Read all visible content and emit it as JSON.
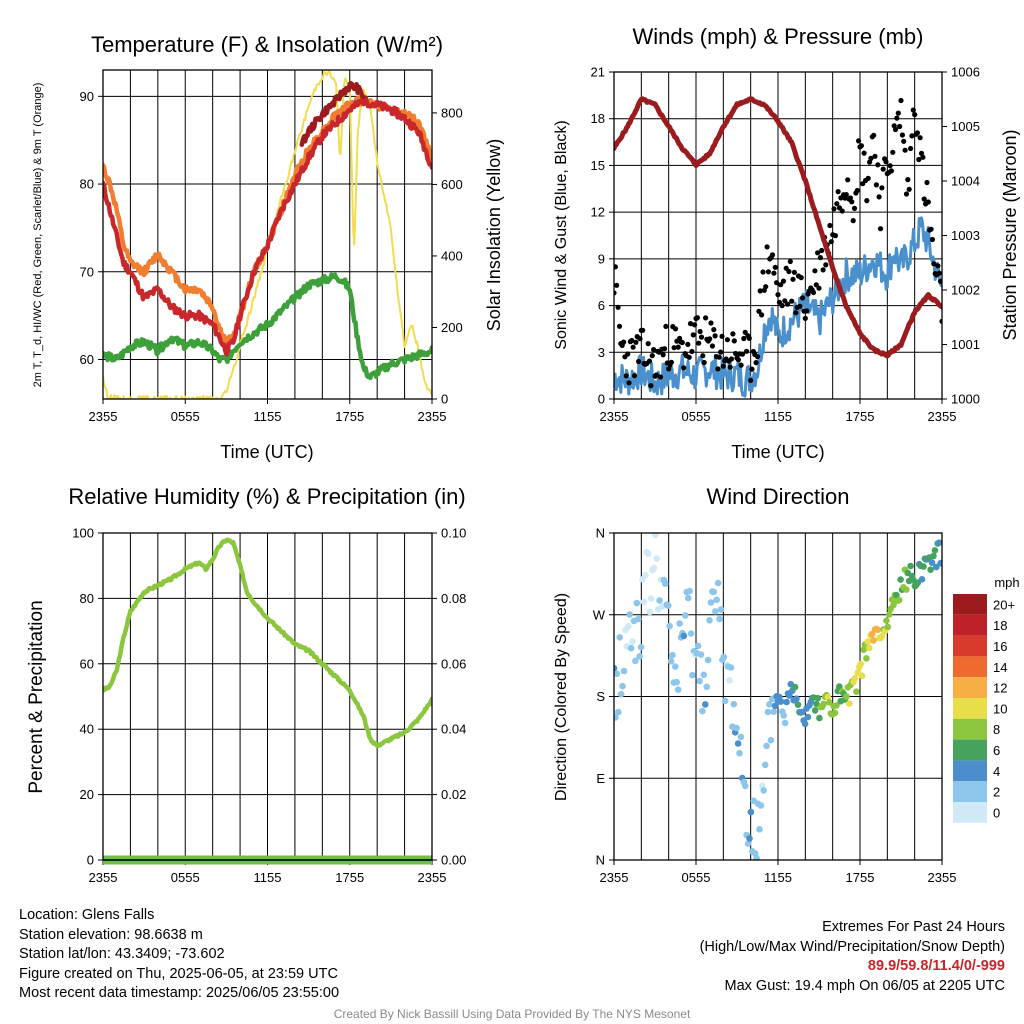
{
  "chart_data": [
    {
      "type": "line",
      "title": "Temperature (F) & Insolation (W/m²)",
      "xlabel": "Time (UTC)",
      "ylabel_left": "2m T, T_d, HI/WC (Red, Green, Scarlet/Blue) & 9m T (Orange)",
      "ylabel_right": "Solar Insolation (Yellow)",
      "x_ticks": [
        "2355",
        "0555",
        "1155",
        "1755",
        "2355"
      ],
      "x_range_hours": [
        0,
        24
      ],
      "ylim_left": [
        55.5,
        93
      ],
      "yticks_left": [
        60,
        70,
        80,
        90
      ],
      "ylim_right": [
        0,
        920
      ],
      "yticks_right": [
        0,
        200,
        400,
        600,
        800
      ],
      "series": [
        {
          "name": "2m T",
          "color": "#c8282b",
          "axis": "left",
          "x": [
            0,
            0.5,
            1,
            1.5,
            2,
            3,
            4,
            5,
            6,
            7,
            8,
            8.5,
            9,
            9.5,
            10,
            11,
            12,
            13,
            14,
            15,
            16,
            17,
            18,
            18.5,
            19,
            20,
            21,
            22,
            23,
            24
          ],
          "values": [
            80,
            77,
            74,
            71,
            70,
            67,
            68,
            66,
            65,
            65,
            64,
            62.5,
            61,
            62,
            65,
            70,
            73,
            77,
            80,
            83,
            85.5,
            87,
            88.5,
            89,
            89.5,
            89,
            88.5,
            87.5,
            86,
            82
          ]
        },
        {
          "name": "9m T",
          "color": "#f07d30",
          "axis": "left",
          "x": [
            0,
            0.5,
            1,
            1.5,
            2,
            3,
            4,
            5,
            6,
            7,
            8,
            8.5,
            9,
            9.5,
            10,
            11,
            12,
            13,
            14,
            15,
            16,
            17,
            18,
            18.5,
            19,
            20,
            21,
            22,
            23,
            24
          ],
          "values": [
            82,
            80,
            77,
            73,
            71,
            70,
            72,
            70,
            68,
            68,
            66,
            63.5,
            62,
            62.5,
            65,
            70,
            73,
            77,
            81,
            84,
            86,
            88,
            89,
            89.5,
            89.5,
            89,
            88.5,
            88,
            87,
            83
          ]
        },
        {
          "name": "HI/WC",
          "color": "#9b1b1f",
          "axis": "left",
          "x": [
            14.5,
            15,
            16,
            17,
            17.5,
            18,
            18.5,
            19
          ],
          "values": [
            84.5,
            86,
            88,
            89.5,
            90.5,
            91.2,
            91,
            90
          ]
        },
        {
          "name": "T_d",
          "color": "#3ea03a",
          "axis": "left",
          "x": [
            0,
            1,
            2,
            3,
            4,
            5,
            6,
            7,
            8,
            8.5,
            9,
            10,
            11,
            12,
            13,
            14,
            15,
            16,
            17,
            17.5,
            18,
            18.5,
            19,
            19.5,
            20,
            21,
            22,
            23,
            24
          ],
          "values": [
            60.5,
            60,
            61.5,
            62,
            61,
            62.5,
            61.5,
            62,
            61,
            60,
            60,
            62,
            63,
            64,
            65.5,
            67,
            68.5,
            69,
            69.5,
            69,
            68,
            63,
            59,
            58,
            58.5,
            59.5,
            60,
            60.5,
            61
          ]
        },
        {
          "name": "Solar Insolation",
          "color": "#f2dc50",
          "axis": "right",
          "x": [
            0,
            0.3,
            1,
            2,
            8.5,
            9,
            9.5,
            10,
            11,
            12,
            13,
            14,
            15,
            15.5,
            16,
            16.5,
            17,
            17.3,
            17.6,
            18,
            18.3,
            18.6,
            19,
            19.5,
            20,
            21,
            21.5,
            22,
            22.5,
            23,
            23.5,
            24
          ],
          "values": [
            60,
            10,
            0,
            0,
            0,
            20,
            80,
            150,
            280,
            420,
            560,
            690,
            820,
            870,
            905,
            915,
            880,
            660,
            890,
            880,
            400,
            760,
            860,
            820,
            660,
            480,
            300,
            150,
            210,
            140,
            40,
            20
          ]
        }
      ]
    },
    {
      "type": "scatter",
      "title": "Winds (mph) & Pressure (mb)",
      "xlabel": "Time (UTC)",
      "ylabel_left": "Sonic Wind & Gust (Blue, Black)",
      "ylabel_right": "Station Pressure (Maroon)",
      "x_ticks": [
        "2355",
        "0555",
        "1155",
        "1755",
        "2355"
      ],
      "x_range_hours": [
        0,
        24
      ],
      "ylim_left": [
        0,
        21
      ],
      "yticks_left": [
        0,
        3,
        6,
        9,
        12,
        15,
        18,
        21
      ],
      "ylim_right": [
        1000,
        1006
      ],
      "yticks_right": [
        1000,
        1001,
        1002,
        1003,
        1004,
        1005,
        1006
      ],
      "series": [
        {
          "name": "Sonic Wind",
          "color": "#4a90cc",
          "axis": "left",
          "x": [
            0,
            1,
            2,
            3,
            4,
            5,
            6,
            7,
            8,
            9,
            9.5,
            10,
            10.5,
            11,
            11.5,
            12,
            13,
            14,
            15,
            16,
            17,
            18,
            19,
            20,
            20.5,
            21,
            22,
            22.5,
            23,
            24
          ],
          "values": [
            1.5,
            1.2,
            1.8,
            1,
            1.5,
            1.8,
            1.5,
            2,
            1.5,
            1.6,
            1.2,
            1.4,
            2,
            4.5,
            5.5,
            4,
            5,
            6,
            5,
            6.5,
            8,
            8,
            9,
            8,
            9.5,
            8.5,
            10,
            11,
            10,
            7
          ]
        },
        {
          "name": "Gust",
          "color": "#000000",
          "axis": "left",
          "x": [
            0,
            0.5,
            1,
            2,
            3,
            4,
            5,
            6,
            7,
            8,
            9,
            10,
            10.5,
            11,
            11.5,
            12,
            12.5,
            13,
            14,
            15,
            16,
            16.5,
            17,
            17.5,
            18,
            18.5,
            19,
            19.5,
            20,
            20.5,
            21,
            21.5,
            22,
            22.5,
            23,
            23.5,
            24
          ],
          "values": [
            8,
            3.5,
            2.5,
            3,
            2,
            3.5,
            3,
            4,
            3.5,
            3,
            3,
            2.5,
            4,
            8,
            9.5,
            6.5,
            7,
            7.5,
            6,
            8.5,
            11,
            13,
            14.5,
            13,
            16,
            14,
            17,
            12.5,
            15,
            16.5,
            18.5,
            13,
            19.4,
            15,
            12,
            8,
            6
          ]
        },
        {
          "name": "Station Pressure",
          "color": "#9b1b1f",
          "axis": "right",
          "type": "line",
          "x": [
            0,
            1,
            2,
            3,
            4,
            5,
            6,
            7,
            8,
            9,
            10,
            11,
            12,
            13,
            14,
            15,
            16,
            17,
            18,
            19,
            20,
            21,
            22,
            23,
            24
          ],
          "values": [
            1004.6,
            1005,
            1005.5,
            1005.4,
            1005,
            1004.6,
            1004.3,
            1004.5,
            1005,
            1005.4,
            1005.5,
            1005.4,
            1005.1,
            1004.7,
            1004,
            1003.2,
            1002.4,
            1001.7,
            1001.2,
            1000.9,
            1000.8,
            1001.0,
            1001.6,
            1001.9,
            1001.7
          ]
        }
      ]
    },
    {
      "type": "line",
      "title": "Relative Humidity (%) & Precipitation (in)",
      "xlabel": "",
      "ylabel_left": "Percent & Precipitation",
      "x_ticks": [
        "2355",
        "0555",
        "1155",
        "1755",
        "2355"
      ],
      "x_range_hours": [
        0,
        24
      ],
      "ylim_left": [
        0,
        100
      ],
      "yticks_left": [
        0,
        20,
        40,
        60,
        80,
        100
      ],
      "ylim_right": [
        0,
        0.1
      ],
      "yticks_right": [
        "0.00",
        "0.02",
        "0.04",
        "0.06",
        "0.08",
        "0.10"
      ],
      "series": [
        {
          "name": "Relative Humidity",
          "color": "#8cc63e",
          "axis": "left",
          "x": [
            0,
            0.5,
            1,
            1.5,
            2,
            3,
            4,
            5,
            6,
            7,
            7.5,
            8,
            8.5,
            9,
            9.5,
            10,
            10.5,
            11,
            12,
            13,
            14,
            15,
            16,
            17,
            18,
            19,
            19.5,
            20,
            21,
            22,
            23,
            24
          ],
          "values": [
            52,
            53,
            58,
            68,
            76,
            82,
            84,
            86,
            89,
            91,
            89,
            92,
            96,
            98,
            97,
            90,
            82,
            79,
            74,
            70,
            66,
            64,
            60,
            56,
            52,
            44,
            37,
            35,
            37,
            39,
            43,
            49
          ]
        },
        {
          "name": "Precipitation",
          "color": "#2d7d2e",
          "axis": "right",
          "x": [
            0,
            24
          ],
          "values": [
            0,
            0
          ]
        }
      ]
    },
    {
      "type": "scatter",
      "title": "Wind Direction",
      "ylabel_left": "Direction (Colored By Speed)",
      "x_ticks": [
        "2355",
        "0555",
        "1155",
        "1755",
        "2355"
      ],
      "x_range_hours": [
        0,
        24
      ],
      "ylim_left": [
        0,
        360
      ],
      "yticks_left": [
        "N",
        "E",
        "S",
        "W",
        "N"
      ],
      "colorbar_title": "mph",
      "colorbar_labels": [
        "0",
        "2",
        "4",
        "6",
        "8",
        "10",
        "12",
        "14",
        "16",
        "18",
        "20+"
      ],
      "colorbar_colors": [
        "#cfe9f7",
        "#8cc6ea",
        "#4a8fcb",
        "#46a35e",
        "#8cc63e",
        "#e8de4a",
        "#f7ae44",
        "#ef6a2e",
        "#d83a2b",
        "#be2127",
        "#9b1b1f"
      ],
      "points_hour_dir_speed": [
        [
          0,
          180,
          3
        ],
        [
          0.5,
          215,
          2
        ],
        [
          1,
          240,
          1
        ],
        [
          1.5,
          255,
          1
        ],
        [
          2,
          270,
          2
        ],
        [
          2.5,
          300,
          0
        ],
        [
          3,
          330,
          0
        ],
        [
          3.5,
          290,
          1
        ],
        [
          4,
          250,
          2
        ],
        [
          4.5,
          200,
          2
        ],
        [
          5,
          240,
          3
        ],
        [
          5.5,
          270,
          2
        ],
        [
          6,
          225,
          1
        ],
        [
          6.5,
          190,
          3
        ],
        [
          7,
          260,
          2
        ],
        [
          7.5,
          280,
          1
        ],
        [
          8,
          215,
          2
        ],
        [
          8.5,
          190,
          1
        ],
        [
          9,
          150,
          3
        ],
        [
          9.5,
          80,
          2
        ],
        [
          10,
          50,
          3
        ],
        [
          10.5,
          20,
          1
        ],
        [
          11,
          70,
          1
        ],
        [
          11.5,
          165,
          2
        ],
        [
          12,
          180,
          4
        ],
        [
          12.5,
          160,
          3
        ],
        [
          13,
          190,
          4
        ],
        [
          13.5,
          175,
          5
        ],
        [
          14,
          160,
          4
        ],
        [
          14.5,
          180,
          5
        ],
        [
          15,
          170,
          7
        ],
        [
          15.5,
          175,
          8
        ],
        [
          16,
          165,
          9
        ],
        [
          16.5,
          180,
          6
        ],
        [
          17,
          175,
          8
        ],
        [
          17.5,
          185,
          9
        ],
        [
          18,
          210,
          10
        ],
        [
          18.5,
          230,
          9
        ],
        [
          19,
          250,
          11
        ],
        [
          19.5,
          240,
          10
        ],
        [
          20,
          260,
          8
        ],
        [
          20.5,
          285,
          7
        ],
        [
          21,
          300,
          6
        ],
        [
          21.5,
          310,
          7
        ],
        [
          22,
          315,
          6
        ],
        [
          22.5,
          320,
          5
        ],
        [
          23,
          330,
          6
        ],
        [
          23.5,
          335,
          5
        ],
        [
          24,
          340,
          4
        ]
      ]
    }
  ],
  "info": {
    "location": "Location: Glens Falls",
    "elevation": "Station elevation: 98.6638 m",
    "latlon": "Station lat/lon: 43.3409; -73.602",
    "created": "Figure created on Thu, 2025-06-05, at 23:59 UTC",
    "recent": "Most recent data timestamp: 2025/06/05 23:55:00"
  },
  "extremes": {
    "title": "Extremes For Past 24 Hours",
    "subtitle": "(High/Low/Max Wind/Precipitation/Snow Depth)",
    "values": "89.9/59.8/11.4/0/-999",
    "gust": "Max Gust: 19.4 mph On 06/05 at 2205 UTC"
  },
  "credit": "Created By Nick Bassill Using Data Provided By The NYS Mesonet"
}
